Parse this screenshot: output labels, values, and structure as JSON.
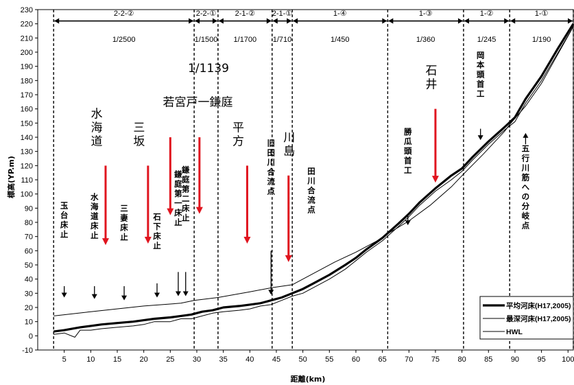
{
  "chart_data": {
    "type": "line",
    "xlabel": "距離(km)",
    "ylabel": "標高(YP.m)",
    "xlim": [
      0,
      101
    ],
    "ylim": [
      -10,
      230
    ],
    "xticks": [
      5,
      10,
      15,
      20,
      25,
      30,
      35,
      40,
      45,
      50,
      55,
      60,
      65,
      70,
      75,
      80,
      85,
      90,
      95,
      100
    ],
    "yticks": [
      -10,
      0,
      10,
      20,
      30,
      40,
      50,
      60,
      70,
      80,
      90,
      100,
      110,
      120,
      130,
      140,
      150,
      160,
      170,
      180,
      190,
      200,
      210,
      220,
      230
    ],
    "section_boundaries": [
      3.0,
      29.5,
      34.0,
      44.2,
      48.0,
      66.0,
      80.3,
      89.0,
      101.0
    ],
    "sections": [
      {
        "label": "2-2-②",
        "slope": "1/2500",
        "from": 3.0,
        "to": 29.5
      },
      {
        "label": "2-2-①",
        "slope": "1/1500",
        "from": 29.5,
        "to": 34.0
      },
      {
        "label": "2-1-②",
        "slope": "1/1700",
        "from": 34.0,
        "to": 44.2
      },
      {
        "label": "2-1-①",
        "slope": "1/710",
        "from": 44.2,
        "to": 48.0
      },
      {
        "label": "1-④",
        "slope": "1/450",
        "from": 48.0,
        "to": 66.0
      },
      {
        "label": "1-③",
        "slope": "1/360",
        "from": 66.0,
        "to": 80.3
      },
      {
        "label": "1-②",
        "slope": "1/245",
        "from": 80.3,
        "to": 89.0
      },
      {
        "label": "1-①",
        "slope": "1/190",
        "from": 89.0,
        "to": 101.0
      }
    ],
    "extra_slope_label": {
      "text": "1/1139",
      "x": 32.2,
      "y": 186
    },
    "series": [
      {
        "name": "平均河床(H17,2005)",
        "style": "thick",
        "x": [
          3,
          5,
          8,
          10,
          12,
          15,
          18,
          20,
          22,
          25,
          27,
          29,
          31,
          33,
          35,
          38,
          40,
          42,
          44,
          46,
          48,
          50,
          52,
          55,
          58,
          60,
          62,
          65,
          68,
          70,
          72,
          75,
          78,
          80,
          82,
          85,
          88,
          90,
          92,
          95,
          98,
          101
        ],
        "y": [
          3,
          4,
          6,
          7,
          8,
          9,
          10,
          11,
          12,
          13,
          14,
          15,
          17,
          18,
          20,
          21,
          22,
          23,
          25,
          27,
          30,
          33,
          37,
          43,
          50,
          55,
          61,
          69,
          79,
          86,
          94,
          104,
          113,
          118,
          126,
          137,
          147,
          154,
          167,
          183,
          202,
          220
        ]
      },
      {
        "name": "最深河床(H17,2005)",
        "style": "thin",
        "x": [
          3,
          5,
          7,
          8,
          10,
          12,
          15,
          18,
          20,
          22,
          25,
          27,
          29,
          31,
          33,
          35,
          38,
          40,
          42,
          44,
          46,
          48,
          50,
          52,
          55,
          58,
          60,
          62,
          65,
          68,
          70,
          72,
          75,
          78,
          80,
          82,
          85,
          88,
          90,
          92,
          95,
          98,
          101
        ],
        "y": [
          1,
          2,
          -1,
          4,
          4,
          5,
          6,
          7,
          8,
          10,
          10,
          12,
          12,
          14,
          16,
          17,
          18,
          19,
          21,
          22,
          25,
          28,
          30,
          34,
          40,
          47,
          53,
          59,
          67,
          77,
          84,
          92,
          102,
          110,
          116,
          124,
          135,
          145,
          151,
          164,
          180,
          199,
          218
        ]
      },
      {
        "name": "HWL",
        "style": "thin",
        "x": [
          3,
          10,
          20,
          27,
          29.5,
          34,
          40,
          44.2,
          48,
          52,
          56,
          60,
          64,
          66,
          70,
          74,
          78,
          80.3,
          84,
          88,
          89,
          92,
          95,
          98,
          101
        ],
        "y": [
          14,
          17,
          21,
          23,
          25,
          27,
          31,
          34,
          36,
          44,
          52,
          59,
          67,
          72,
          81,
          92,
          105,
          114,
          128,
          144,
          149,
          162,
          178,
          198,
          218
        ]
      }
    ],
    "legend": {
      "placement": "bottom-right",
      "entries": [
        "平均河床(H17,2005)",
        "最深河床(H17,2005)",
        "HWL"
      ]
    },
    "red_arrows": [
      {
        "label": "水海道",
        "x": 12.8,
        "y_top": 120,
        "y_bottom": 64
      },
      {
        "label": "三坂",
        "x": 20.8,
        "y_top": 120,
        "y_bottom": 65
      },
      {
        "label": "",
        "x": 25.0,
        "y_top": 140,
        "y_bottom": 85
      },
      {
        "label": "",
        "x": 30.5,
        "y_top": 140,
        "y_bottom": 86
      },
      {
        "label": "平方",
        "x": 39.5,
        "y_top": 120,
        "y_bottom": 65
      },
      {
        "label": "川島",
        "x": 47.3,
        "y_top": 113,
        "y_bottom": 52
      },
      {
        "label": "石井",
        "x": 75.0,
        "y_top": 160,
        "y_bottom": 108
      }
    ],
    "red_group_label": {
      "text": "若宮戸一鎌庭",
      "x": 30.2,
      "y": 162
    },
    "black_labels": [
      {
        "text": "玉台床止",
        "x": 5.0,
        "y_top": 90,
        "arrow_from": 35,
        "arrow_to": 27
      },
      {
        "text": "水海道床止",
        "x": 10.7,
        "y_top": 96,
        "arrow_from": 35,
        "arrow_to": 26
      },
      {
        "text": "三妻床止",
        "x": 16.3,
        "y_top": 88,
        "arrow_from": 35,
        "arrow_to": 25
      },
      {
        "text": "石下床止",
        "x": 22.5,
        "y_top": 82,
        "arrow_from": 37,
        "arrow_to": 27
      },
      {
        "text": "鎌庭第一床止",
        "x": 26.5,
        "y_top": 112,
        "arrow_from": 45,
        "arrow_to": 28
      },
      {
        "text": "鎌庭第二床止",
        "x": 27.9,
        "y_top": 115,
        "arrow_from": 45,
        "arrow_to": 28
      },
      {
        "text": "旧田川合流点",
        "x": 44.0,
        "y_top": 134,
        "arrow_from": 60,
        "arrow_to": 29
      },
      {
        "text": "田川合流点",
        "x": 51.6,
        "y_top": 114,
        "arrow_from": 0,
        "arrow_to": 0
      },
      {
        "text": "勝瓜頭首工",
        "x": 69.8,
        "y_top": 142,
        "arrow_from": 86,
        "arrow_to": 78
      },
      {
        "text": "岡本頭首工",
        "x": 83.5,
        "y_top": 196,
        "arrow_from": 146,
        "arrow_to": 138
      },
      {
        "text": "五行川筋への分岐点",
        "x": 92.0,
        "y_top": 130,
        "arrow_from": 135,
        "arrow_to": 143
      }
    ],
    "dimension_line_y": 222
  }
}
